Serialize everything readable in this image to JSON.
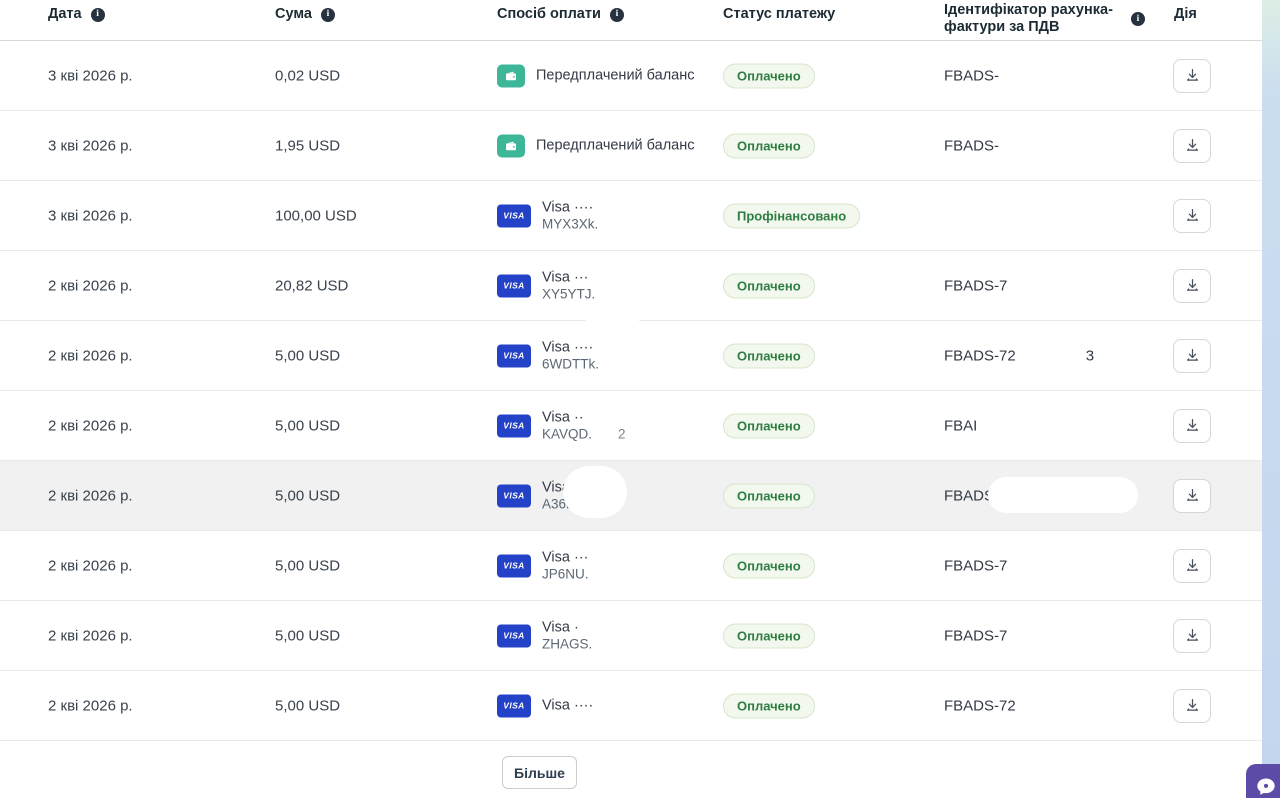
{
  "header": {
    "columns": [
      {
        "label": "Дата",
        "info": true
      },
      {
        "label": "Сума",
        "info": true
      },
      {
        "label": "Спосіб оплати",
        "info": true
      },
      {
        "label": "Статус платежу",
        "info": false
      },
      {
        "label": "Ідентифікатор рахунка-фактури за ПДВ",
        "info": true
      },
      {
        "label": "Дія",
        "info": false
      }
    ]
  },
  "rows": [
    {
      "date": "3 кві 2026 р.",
      "amount": "0,02 USD",
      "method": {
        "type": "wallet",
        "line1": "Передплачений баланс",
        "line2": "",
        "line2_extra": ""
      },
      "status": "Оплачено",
      "invoice": "FBADS-",
      "invoice_extra": "",
      "highlighted": false,
      "redacted": false
    },
    {
      "date": "3 кві 2026 р.",
      "amount": "1,95 USD",
      "method": {
        "type": "wallet",
        "line1": "Передплачений баланс",
        "line2": "",
        "line2_extra": ""
      },
      "status": "Оплачено",
      "invoice": "FBADS-",
      "invoice_extra": "",
      "highlighted": false,
      "redacted": false
    },
    {
      "date": "3 кві 2026 р.",
      "amount": "100,00 USD",
      "method": {
        "type": "visa",
        "line1": "Visa ····",
        "line2": "MYX3Xk.",
        "line2_extra": ""
      },
      "status": "Профінансовано",
      "invoice": "",
      "invoice_extra": "",
      "highlighted": false,
      "redacted": false
    },
    {
      "date": "2 кві 2026 р.",
      "amount": "20,82 USD",
      "method": {
        "type": "visa",
        "line1": "Visa ···",
        "line2": "XY5YTJ.",
        "line2_extra": ""
      },
      "status": "Оплачено",
      "invoice": "FBADS-7",
      "invoice_extra": "",
      "highlighted": false,
      "redacted": false
    },
    {
      "date": "2 кві 2026 р.",
      "amount": "5,00 USD",
      "method": {
        "type": "visa",
        "line1": "Visa ····",
        "line2": "6WDTTk.",
        "line2_extra": ""
      },
      "status": "Оплачено",
      "invoice": "FBADS-72",
      "invoice_extra": "3",
      "highlighted": false,
      "redacted": false
    },
    {
      "date": "2 кві 2026 р.",
      "amount": "5,00 USD",
      "method": {
        "type": "visa",
        "line1": "Visa ··",
        "line2": "KAVQD.",
        "line2_extra": "2"
      },
      "status": "Оплачено",
      "invoice": "FBAI",
      "invoice_extra": "",
      "highlighted": false,
      "redacted": false
    },
    {
      "date": "2 кві 2026 р.",
      "amount": "5,00 USD",
      "method": {
        "type": "visa",
        "line1": "Visa ··",
        "line2": "A36PY.",
        "line2_extra": ""
      },
      "status": "Оплачено",
      "invoice": "FBADS",
      "invoice_extra": "",
      "highlighted": true,
      "redacted": true
    },
    {
      "date": "2 кві 2026 р.",
      "amount": "5,00 USD",
      "method": {
        "type": "visa",
        "line1": "Visa ···",
        "line2": "JP6NU.",
        "line2_extra": ""
      },
      "status": "Оплачено",
      "invoice": "FBADS-7",
      "invoice_extra": "",
      "highlighted": false,
      "redacted": false
    },
    {
      "date": "2 кві 2026 р.",
      "amount": "5,00 USD",
      "method": {
        "type": "visa",
        "line1": "Visa ·",
        "line2": "ZHAGS.",
        "line2_extra": ""
      },
      "status": "Оплачено",
      "invoice": "FBADS-7",
      "invoice_extra": "",
      "highlighted": false,
      "redacted": false
    },
    {
      "date": "2 кві 2026 р.",
      "amount": "5,00 USD",
      "method": {
        "type": "visa",
        "line1": "Visa ····",
        "line2": "",
        "line2_extra": ""
      },
      "status": "Оплачено",
      "invoice": "FBADS-72",
      "invoice_extra": "",
      "highlighted": false,
      "redacted": false
    }
  ],
  "more_button_label": "Більше",
  "badges": {
    "visa_label": "VISA"
  },
  "icons": {
    "info": "info-icon",
    "wallet": "wallet-icon",
    "download": "download-icon",
    "chat": "chat-bubble-icon"
  },
  "colors": {
    "status_text": "#2e7d43",
    "status_bg": "#f2f8ee",
    "status_border": "#d5e6cb",
    "visa_blue": "#2342c8",
    "wallet_teal": "#3eb798",
    "chat_purple": "#5d4ba8",
    "highlight_row": "#f1f1f1",
    "scroll_strip": "#c3d6ee"
  }
}
